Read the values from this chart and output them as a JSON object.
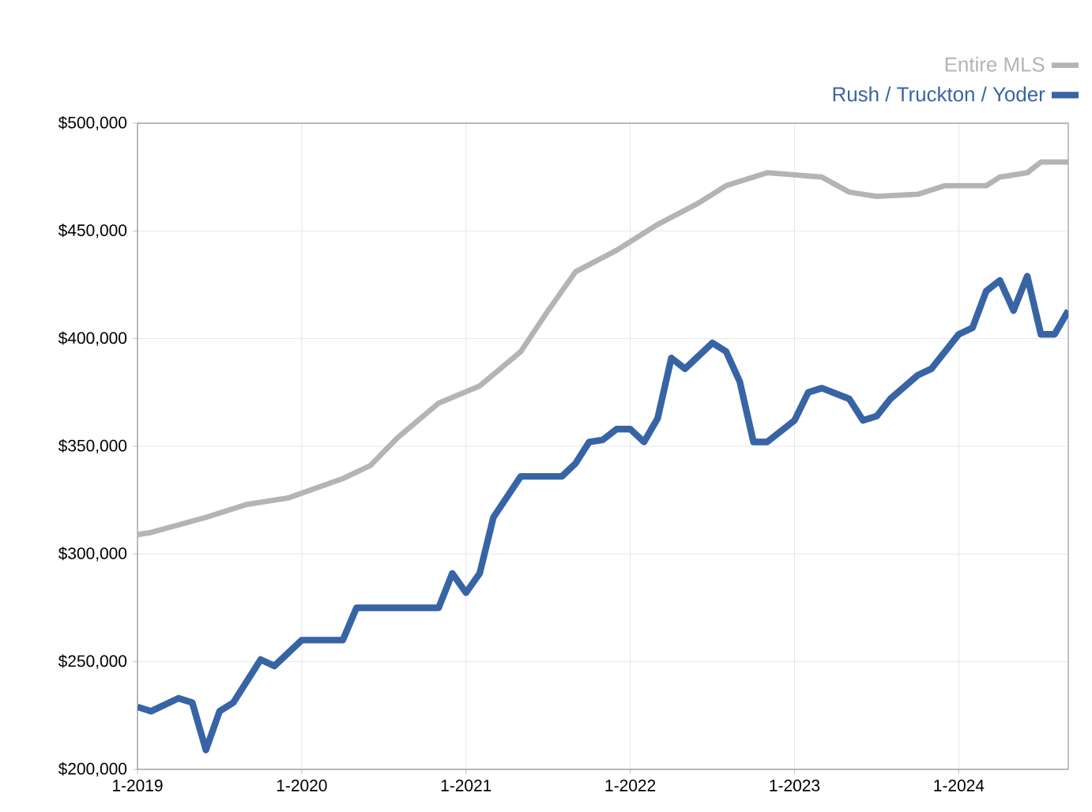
{
  "chart_data": {
    "type": "line",
    "xlim": [
      "2019-01",
      "2024-09"
    ],
    "ylim": [
      200000,
      500000
    ],
    "xticks": [
      {
        "value": "2019-01",
        "label": "1-2019"
      },
      {
        "value": "2020-01",
        "label": "1-2020"
      },
      {
        "value": "2021-01",
        "label": "1-2021"
      },
      {
        "value": "2022-01",
        "label": "1-2022"
      },
      {
        "value": "2023-01",
        "label": "1-2023"
      },
      {
        "value": "2024-01",
        "label": "1-2024"
      }
    ],
    "yticks": [
      {
        "value": 200000,
        "label": "$200,000"
      },
      {
        "value": 250000,
        "label": "$250,000"
      },
      {
        "value": 300000,
        "label": "$300,000"
      },
      {
        "value": 350000,
        "label": "$350,000"
      },
      {
        "value": 400000,
        "label": "$400,000"
      },
      {
        "value": 450000,
        "label": "$450,000"
      },
      {
        "value": 500000,
        "label": "$500,000"
      }
    ],
    "grid": true,
    "legend": "top right",
    "marker": "none",
    "line_style": "solid",
    "series": [
      {
        "name": "Entire MLS",
        "color": "#b4b4b4",
        "x": [
          "2019-01",
          "2019-02",
          "2019-06",
          "2019-09",
          "2019-12",
          "2020-04",
          "2020-06",
          "2020-08",
          "2020-11",
          "2021-02",
          "2021-05",
          "2021-07",
          "2021-09",
          "2021-12",
          "2022-03",
          "2022-06",
          "2022-08",
          "2022-11",
          "2023-03",
          "2023-05",
          "2023-07",
          "2023-10",
          "2023-12",
          "2024-03",
          "2024-04",
          "2024-06",
          "2024-07",
          "2024-09"
        ],
        "values": [
          309000,
          310000,
          317000,
          323000,
          326000,
          335000,
          341000,
          354000,
          370000,
          378000,
          394000,
          413000,
          431000,
          441000,
          453000,
          463000,
          471000,
          477000,
          475000,
          468000,
          466000,
          467000,
          471000,
          471000,
          475000,
          477000,
          482000,
          482000
        ]
      },
      {
        "name": "Rush / Truckton / Yoder",
        "color": "#3764a4",
        "x": [
          "2019-01",
          "2019-02",
          "2019-04",
          "2019-05",
          "2019-06",
          "2019-07",
          "2019-08",
          "2019-10",
          "2019-11",
          "2020-01",
          "2020-04",
          "2020-05",
          "2020-08",
          "2020-11",
          "2020-12",
          "2021-01",
          "2021-02",
          "2021-03",
          "2021-05",
          "2021-08",
          "2021-09",
          "2021-10",
          "2021-11",
          "2021-12",
          "2022-01",
          "2022-02",
          "2022-03",
          "2022-04",
          "2022-05",
          "2022-07",
          "2022-08",
          "2022-09",
          "2022-10",
          "2022-11",
          "2023-01",
          "2023-02",
          "2023-03",
          "2023-05",
          "2023-06",
          "2023-07",
          "2023-08",
          "2023-10",
          "2023-11",
          "2024-01",
          "2024-02",
          "2024-03",
          "2024-04",
          "2024-05",
          "2024-06",
          "2024-07",
          "2024-08",
          "2024-09"
        ],
        "values": [
          229000,
          227000,
          233000,
          231000,
          209000,
          227000,
          231000,
          251000,
          248000,
          260000,
          260000,
          275000,
          275000,
          275000,
          291000,
          282000,
          291000,
          317000,
          336000,
          336000,
          342000,
          352000,
          353000,
          358000,
          358000,
          352000,
          363000,
          391000,
          386000,
          398000,
          394000,
          380000,
          352000,
          352000,
          362000,
          375000,
          377000,
          372000,
          362000,
          364000,
          372000,
          383000,
          386000,
          402000,
          405000,
          422000,
          427000,
          413000,
          429000,
          402000,
          402000,
          413000
        ]
      }
    ]
  }
}
